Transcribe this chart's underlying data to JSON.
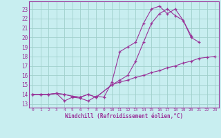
{
  "xlabel": "Windchill (Refroidissement éolien,°C)",
  "bg_color": "#c8eef0",
  "grid_color": "#a0d0cc",
  "line_color": "#993399",
  "xlim": [
    -0.5,
    23.5
  ],
  "ylim": [
    12.6,
    23.8
  ],
  "xticks": [
    0,
    1,
    2,
    3,
    4,
    5,
    6,
    7,
    8,
    9,
    10,
    11,
    12,
    13,
    14,
    15,
    16,
    17,
    18,
    19,
    20,
    21,
    22,
    23
  ],
  "yticks": [
    13,
    14,
    15,
    16,
    17,
    18,
    19,
    20,
    21,
    22,
    23
  ],
  "series1_x": [
    0,
    1,
    2,
    3,
    4,
    5,
    6,
    7,
    8,
    9,
    10,
    11,
    12,
    13,
    14,
    15,
    16,
    17,
    18,
    19,
    20,
    21
  ],
  "series1_y": [
    14.0,
    14.0,
    14.0,
    14.1,
    13.3,
    13.7,
    13.6,
    13.3,
    13.8,
    13.7,
    15.3,
    18.5,
    19.0,
    19.5,
    21.5,
    23.0,
    23.3,
    22.5,
    23.0,
    21.8,
    20.0,
    19.5
  ],
  "series2_x": [
    0,
    1,
    2,
    3,
    4,
    5,
    6,
    7,
    8,
    10,
    11,
    12,
    13,
    14,
    15,
    16,
    17,
    18,
    19,
    20,
    21,
    22,
    23
  ],
  "series2_y": [
    14.0,
    14.0,
    14.0,
    14.1,
    14.0,
    13.8,
    13.7,
    14.0,
    13.7,
    15.0,
    15.3,
    15.5,
    15.8,
    16.0,
    16.3,
    16.5,
    16.8,
    17.0,
    17.3,
    17.5,
    17.8,
    17.9,
    18.0
  ],
  "series3_x": [
    0,
    1,
    2,
    3,
    4,
    5,
    6,
    7,
    8,
    10,
    11,
    12,
    13,
    14,
    15,
    16,
    17,
    18,
    19,
    20
  ],
  "series3_y": [
    14.0,
    14.0,
    14.0,
    14.1,
    14.0,
    13.8,
    13.7,
    14.0,
    13.7,
    15.0,
    15.5,
    16.0,
    17.5,
    19.5,
    21.5,
    22.5,
    23.0,
    22.3,
    21.8,
    20.2
  ]
}
